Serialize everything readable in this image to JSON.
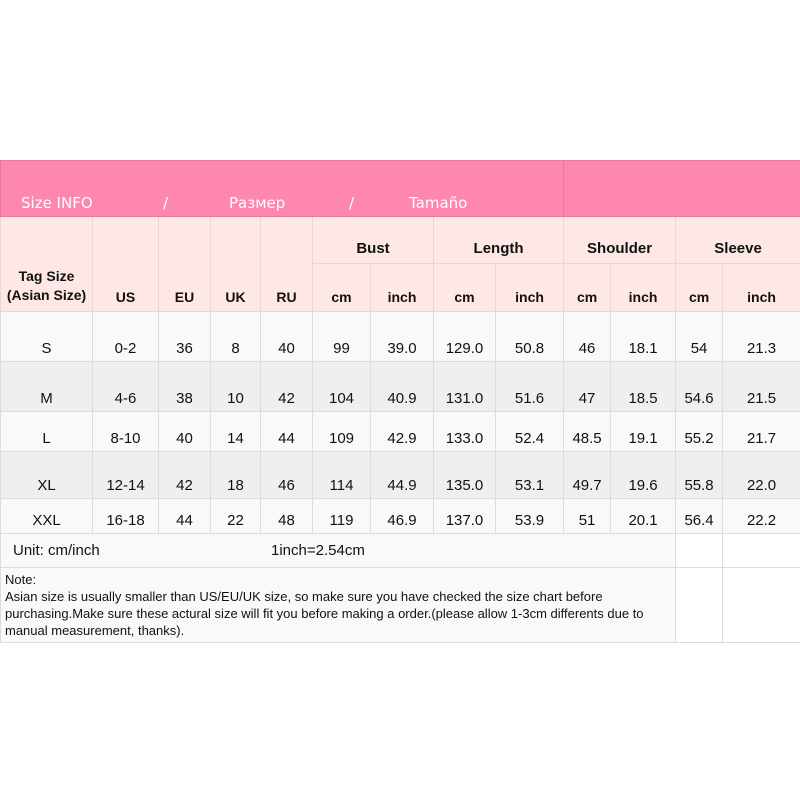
{
  "title": {
    "en": "Size INFO",
    "sep": "/",
    "ru": "Размер",
    "es": "Tamaño"
  },
  "headers": {
    "tag_size": "Tag Size",
    "asian_size": "(Asian Size)",
    "us": "US",
    "eu": "EU",
    "uk": "UK",
    "ru": "RU",
    "bust": "Bust",
    "length": "Length",
    "shoulder": "Shoulder",
    "sleeve": "Sleeve",
    "cm": "cm",
    "inch": "inch"
  },
  "rows": [
    [
      "S",
      "0-2",
      "36",
      "8",
      "40",
      "99",
      "39.0",
      "129.0",
      "50.8",
      "46",
      "18.1",
      "54",
      "21.3"
    ],
    [
      "M",
      "4-6",
      "38",
      "10",
      "42",
      "104",
      "40.9",
      "131.0",
      "51.6",
      "47",
      "18.5",
      "54.6",
      "21.5"
    ],
    [
      "L",
      "8-10",
      "40",
      "14",
      "44",
      "109",
      "42.9",
      "133.0",
      "52.4",
      "48.5",
      "19.1",
      "55.2",
      "21.7"
    ],
    [
      "XL",
      "12-14",
      "42",
      "18",
      "46",
      "114",
      "44.9",
      "135.0",
      "53.1",
      "49.7",
      "19.6",
      "55.8",
      "22.0"
    ],
    [
      "XXL",
      "16-18",
      "44",
      "22",
      "48",
      "119",
      "46.9",
      "137.0",
      "53.9",
      "51",
      "20.1",
      "56.4",
      "22.2"
    ]
  ],
  "unit": "Unit: cm/inch",
  "conversion": "1inch=2.54cm",
  "note_label": "Note:",
  "note_text": "Asian size is usually smaller than US/EU/UK size, so make sure you have checked the size chart before purchasing.Make sure these actural size will fit you before making a order.(please allow 1-3cm differents due to manual measurement, thanks).",
  "colors": {
    "pink": "#fe87ad",
    "header_bg": "#fde8e6"
  }
}
